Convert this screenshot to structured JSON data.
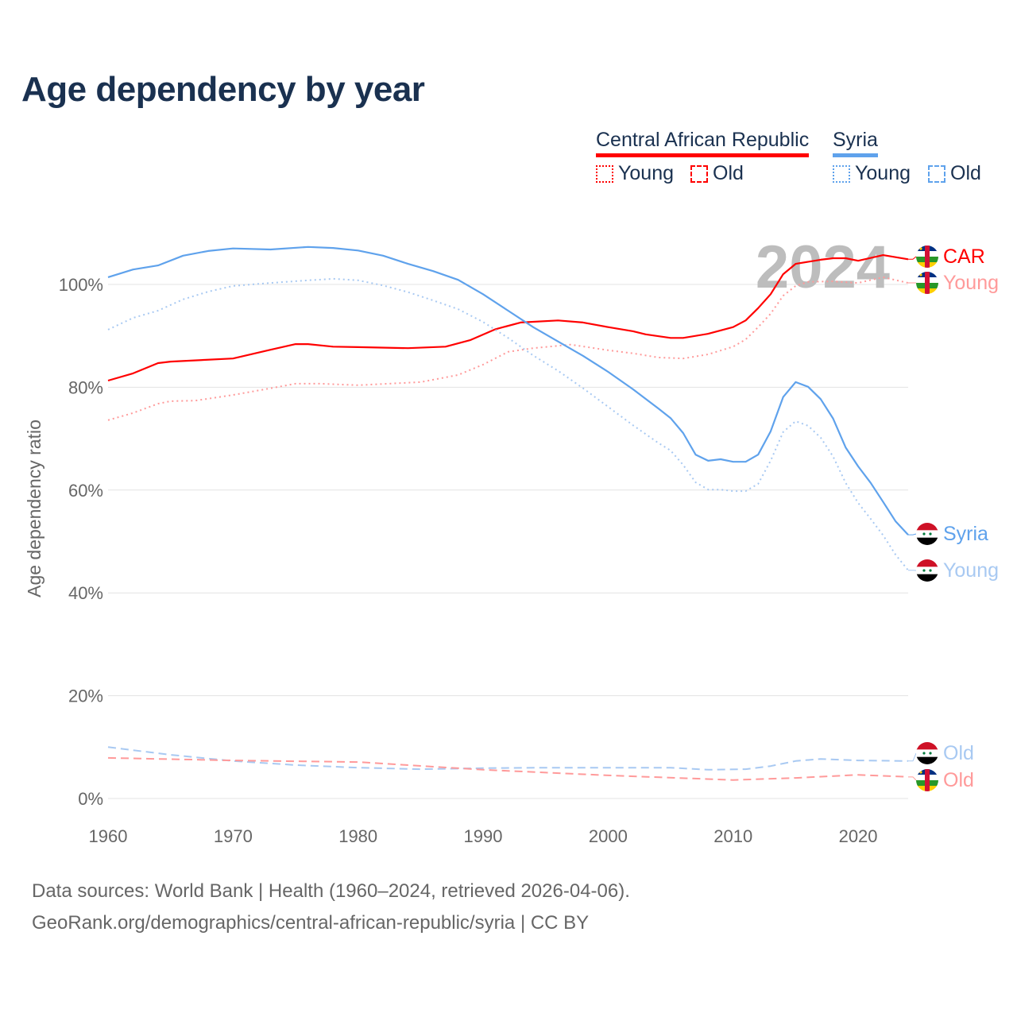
{
  "chart_data": {
    "type": "line",
    "title": "Age dependency by year",
    "xlabel": "",
    "ylabel": "Age dependency ratio",
    "xlim": [
      1960,
      2024
    ],
    "ylim": [
      0,
      110
    ],
    "x_ticks": [
      "1960",
      "1970",
      "1980",
      "1990",
      "2000",
      "2010",
      "2020"
    ],
    "y_ticks": [
      "0%",
      "20%",
      "40%",
      "60%",
      "80%",
      "100%"
    ],
    "grid": true,
    "current_year_label": "2024",
    "legend": {
      "countries": [
        {
          "name": "Central African Republic",
          "color": "#ff0000"
        },
        {
          "name": "Syria",
          "color": "#5fa2ec"
        }
      ],
      "types": [
        "Young",
        "Old"
      ]
    },
    "series": [
      {
        "name": "CAR",
        "end_label": "CAR",
        "country": "Central African Republic",
        "kind": "total",
        "color": "#ff0000",
        "style": "solid",
        "x": [
          1960,
          1962,
          1964,
          1965,
          1970,
          1973,
          1975,
          1976,
          1978,
          1980,
          1984,
          1987,
          1989,
          1991,
          1993,
          1996,
          1998,
          2000,
          2002,
          2003,
          2005,
          2006,
          2008,
          2010,
          2011,
          2012,
          2013,
          2014,
          2015,
          2017,
          2018,
          2019,
          2020,
          2022,
          2024
        ],
        "y": [
          81.3,
          82.7,
          84.7,
          85.0,
          85.6,
          87.3,
          88.4,
          88.4,
          87.9,
          87.8,
          87.6,
          87.9,
          89.2,
          91.3,
          92.6,
          93.0,
          92.6,
          91.7,
          90.9,
          90.3,
          89.6,
          89.6,
          90.4,
          91.7,
          93.0,
          95.4,
          98.1,
          102.0,
          104.0,
          104.8,
          105.1,
          105.1,
          104.6,
          105.7,
          104.9
        ]
      },
      {
        "name": "CAR Young",
        "end_label": "Young",
        "country": "Central African Republic",
        "kind": "young",
        "color": "#ff9a9a",
        "style": "dotted",
        "x": [
          1960,
          1962,
          1964,
          1965,
          1967,
          1970,
          1973,
          1975,
          1977,
          1980,
          1985,
          1988,
          1990,
          1992,
          1994,
          1997,
          2000,
          2002,
          2004,
          2006,
          2008,
          2010,
          2011,
          2012,
          2013,
          2014,
          2015,
          2016,
          2018,
          2020,
          2022,
          2024
        ],
        "y": [
          73.6,
          75.0,
          76.8,
          77.3,
          77.4,
          78.5,
          79.8,
          80.7,
          80.7,
          80.4,
          81.0,
          82.4,
          84.4,
          86.9,
          87.6,
          88.3,
          87.2,
          86.6,
          85.8,
          85.6,
          86.4,
          87.9,
          89.3,
          91.7,
          94.3,
          97.8,
          99.7,
          100.5,
          100.6,
          100.3,
          101.4,
          100.3
        ]
      },
      {
        "name": "Syria",
        "end_label": "Syria",
        "country": "Syria",
        "kind": "total",
        "color": "#5fa2ec",
        "style": "solid",
        "x": [
          1960,
          1962,
          1964,
          1966,
          1968,
          1970,
          1973,
          1976,
          1978,
          1980,
          1982,
          1984,
          1986,
          1988,
          1990,
          1992,
          1994,
          1996,
          1998,
          2000,
          2002,
          2004,
          2005,
          2006,
          2007,
          2008,
          2009,
          2010,
          2011,
          2012,
          2013,
          2014,
          2015,
          2016,
          2017,
          2018,
          2019,
          2020,
          2021,
          2022,
          2023,
          2024
        ],
        "y": [
          101.4,
          102.9,
          103.7,
          105.6,
          106.5,
          107.0,
          106.8,
          107.3,
          107.1,
          106.6,
          105.6,
          104.0,
          102.6,
          100.9,
          98.1,
          94.9,
          91.7,
          88.9,
          86.1,
          83.0,
          79.6,
          75.9,
          74.0,
          71.1,
          66.9,
          65.7,
          66.0,
          65.5,
          65.5,
          66.9,
          71.4,
          78.1,
          81.0,
          80.1,
          77.7,
          73.9,
          68.3,
          64.6,
          61.4,
          57.7,
          53.9,
          51.3
        ]
      },
      {
        "name": "Syria Young",
        "end_label": "Young",
        "country": "Syria",
        "kind": "young",
        "color": "#a8c9f2",
        "style": "dotted",
        "x": [
          1960,
          1962,
          1964,
          1966,
          1968,
          1970,
          1973,
          1976,
          1978,
          1980,
          1982,
          1984,
          1986,
          1988,
          1990,
          1992,
          1994,
          1996,
          1998,
          2000,
          2002,
          2004,
          2005,
          2006,
          2007,
          2008,
          2009,
          2010,
          2011,
          2012,
          2013,
          2014,
          2015,
          2016,
          2017,
          2018,
          2019,
          2020,
          2021,
          2022,
          2023,
          2024
        ],
        "y": [
          91.2,
          93.5,
          94.9,
          97.1,
          98.6,
          99.7,
          100.3,
          100.8,
          101.1,
          100.8,
          99.8,
          98.5,
          96.9,
          95.2,
          92.7,
          89.6,
          86.2,
          83.2,
          79.8,
          76.2,
          72.6,
          69.2,
          67.7,
          64.9,
          61.5,
          60.1,
          60.1,
          59.8,
          59.8,
          61.2,
          65.7,
          71.3,
          73.4,
          72.5,
          70.2,
          66.5,
          61.4,
          57.5,
          54.4,
          51.2,
          47.4,
          44.4
        ]
      },
      {
        "name": "Syria Old",
        "end_label": "Old",
        "country": "Syria",
        "kind": "old",
        "color": "#a8c9f2",
        "style": "dashed",
        "x": [
          1960,
          1965,
          1970,
          1975,
          1980,
          1985,
          1990,
          1995,
          2000,
          2005,
          2008,
          2011,
          2013,
          2015,
          2017,
          2020,
          2024
        ],
        "y": [
          10.0,
          8.5,
          7.3,
          6.5,
          6.0,
          5.7,
          5.9,
          6.0,
          6.0,
          6.0,
          5.6,
          5.7,
          6.3,
          7.3,
          7.7,
          7.4,
          7.3
        ]
      },
      {
        "name": "CAR Old",
        "end_label": "Old",
        "country": "Central African Republic",
        "kind": "old",
        "color": "#ff9a9a",
        "style": "dashed",
        "x": [
          1960,
          1970,
          1980,
          1990,
          2000,
          2010,
          2015,
          2020,
          2024
        ],
        "y": [
          7.9,
          7.4,
          7.1,
          5.6,
          4.5,
          3.6,
          4.0,
          4.6,
          4.2
        ]
      }
    ]
  },
  "footer": {
    "line1": "Data sources: World Bank | Health (1960–2024, retrieved 2026-04-06).",
    "line2": "GeoRank.org/demographics/central-african-republic/syria | CC BY"
  }
}
